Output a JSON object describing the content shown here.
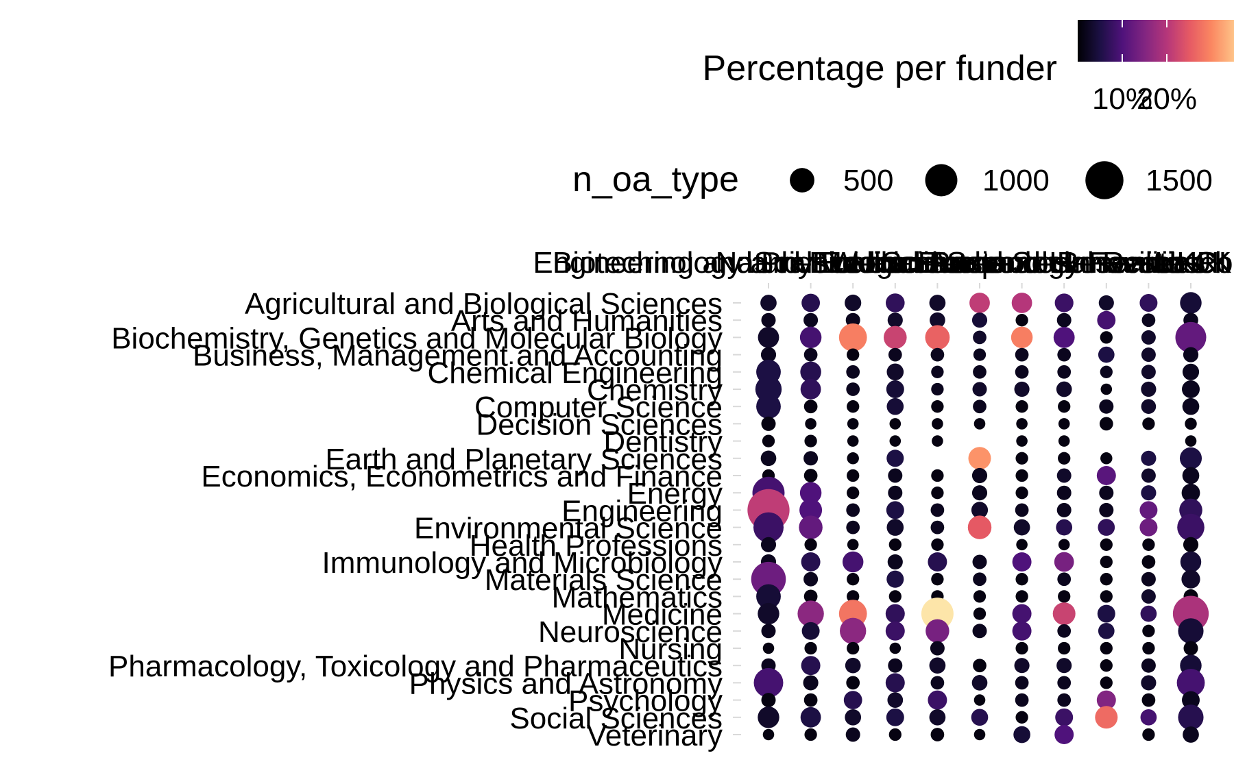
{
  "chart_data": {
    "type": "dotplot",
    "xlabel": "",
    "ylabel": "",
    "x_categories": [
      "Engineering and Physical Sciences",
      "Biotechnology and Biological Sciences",
      "Natural Environment",
      "Wellcome",
      "Medical Research",
      "Science and Technology Facilities",
      "Economic and Social Research",
      "Arts and Humanities",
      "European Research Council",
      "Innovate UK",
      "UKRI"
    ],
    "y_categories": [
      "Agricultural and Biological Sciences",
      "Arts and Humanities",
      "Biochemistry, Genetics and Molecular Biology",
      "Business, Management and Accounting",
      "Chemical Engineering",
      "Chemistry",
      "Computer Science",
      "Decision Sciences",
      "Dentistry",
      "Earth and Planetary Sciences",
      "Economics, Econometrics and Finance",
      "Energy",
      "Engineering",
      "Environmental Science",
      "Health Professions",
      "Immunology and Microbiology",
      "Materials Science",
      "Mathematics",
      "Medicine",
      "Neuroscience",
      "Nursing",
      "Pharmacology, Toxicology and Pharmaceutics",
      "Physics and Astronomy",
      "Psychology",
      "Social Sciences",
      "Veterinary"
    ],
    "points": [
      {
        "row": 0,
        "values": [
          [
            150,
            3
          ],
          [
            220,
            6
          ],
          [
            160,
            3
          ],
          [
            240,
            7
          ],
          [
            150,
            3
          ],
          [
            300,
            21
          ],
          [
            300,
            20
          ],
          [
            230,
            8
          ],
          [
            120,
            3
          ],
          [
            200,
            7
          ],
          [
            350,
            4
          ]
        ]
      },
      {
        "row": 1,
        "values": [
          [
            100,
            2
          ],
          [
            100,
            2
          ],
          [
            100,
            2
          ],
          [
            120,
            3
          ],
          [
            130,
            3
          ],
          [
            120,
            4
          ],
          [
            60,
            1
          ],
          [
            100,
            2
          ],
          [
            220,
            9
          ],
          [
            80,
            2
          ],
          [
            110,
            2
          ]
        ]
      },
      {
        "row": 2,
        "values": [
          [
            330,
            3
          ],
          [
            350,
            9
          ],
          [
            700,
            29
          ],
          [
            420,
            22
          ],
          [
            500,
            26
          ],
          [
            80,
            3
          ],
          [
            350,
            29
          ],
          [
            330,
            10
          ],
          [
            60,
            1
          ],
          [
            100,
            3
          ],
          [
            900,
            12
          ]
        ]
      },
      {
        "row": 3,
        "values": [
          [
            120,
            2
          ],
          [
            80,
            2
          ],
          [
            60,
            1
          ],
          [
            80,
            2
          ],
          [
            80,
            2
          ],
          [
            60,
            2
          ],
          [
            80,
            2
          ],
          [
            80,
            2
          ],
          [
            150,
            5
          ],
          [
            100,
            3
          ],
          [
            120,
            2
          ]
        ]
      },
      {
        "row": 4,
        "values": [
          [
            500,
            5
          ],
          [
            320,
            6
          ],
          [
            80,
            2
          ],
          [
            170,
            3
          ],
          [
            60,
            2
          ],
          [
            80,
            2
          ],
          [
            80,
            2
          ],
          [
            80,
            2
          ],
          [
            60,
            2
          ],
          [
            100,
            3
          ],
          [
            160,
            2
          ]
        ]
      },
      {
        "row": 5,
        "values": [
          [
            600,
            5
          ],
          [
            300,
            7
          ],
          [
            80,
            2
          ],
          [
            200,
            4
          ],
          [
            60,
            2
          ],
          [
            100,
            3
          ],
          [
            120,
            3
          ],
          [
            130,
            3
          ],
          [
            40,
            1
          ],
          [
            120,
            3
          ],
          [
            200,
            2
          ]
        ]
      },
      {
        "row": 6,
        "values": [
          [
            500,
            5
          ],
          [
            80,
            1
          ],
          [
            60,
            1
          ],
          [
            170,
            4
          ],
          [
            60,
            1
          ],
          [
            80,
            2
          ],
          [
            60,
            1
          ],
          [
            60,
            1
          ],
          [
            100,
            2
          ],
          [
            110,
            3
          ],
          [
            170,
            2
          ]
        ]
      },
      {
        "row": 7,
        "values": [
          [
            100,
            1
          ],
          [
            40,
            1
          ],
          [
            40,
            1
          ],
          [
            40,
            1
          ],
          [
            40,
            1
          ],
          [
            40,
            1
          ],
          [
            40,
            1
          ],
          [
            40,
            1
          ],
          [
            80,
            1
          ],
          [
            60,
            1
          ],
          [
            50,
            1
          ]
        ]
      },
      {
        "row": 8,
        "values": [
          [
            60,
            1
          ],
          [
            60,
            1
          ],
          [
            40,
            1
          ],
          [
            40,
            1
          ],
          [
            40,
            1
          ],
          [
            0,
            0
          ],
          [
            40,
            1
          ],
          [
            40,
            1
          ],
          [
            0,
            0
          ],
          [
            0,
            0
          ],
          [
            40,
            1
          ]
        ]
      },
      {
        "row": 9,
        "values": [
          [
            130,
            2
          ],
          [
            100,
            2
          ],
          [
            50,
            1
          ],
          [
            180,
            5
          ],
          [
            0,
            0
          ],
          [
            400,
            31
          ],
          [
            60,
            1
          ],
          [
            60,
            1
          ],
          [
            50,
            1
          ],
          [
            120,
            5
          ],
          [
            370,
            5
          ]
        ]
      },
      {
        "row": 10,
        "values": [
          [
            60,
            1
          ],
          [
            80,
            1
          ],
          [
            60,
            1
          ],
          [
            100,
            2
          ],
          [
            60,
            1
          ],
          [
            120,
            2
          ],
          [
            60,
            1
          ],
          [
            100,
            3
          ],
          [
            250,
            11
          ],
          [
            100,
            3
          ],
          [
            170,
            2
          ]
        ]
      },
      {
        "row": 11,
        "values": [
          [
            1000,
            9
          ],
          [
            350,
            10
          ],
          [
            60,
            1
          ],
          [
            100,
            2
          ],
          [
            60,
            1
          ],
          [
            120,
            2
          ],
          [
            60,
            1
          ],
          [
            100,
            2
          ],
          [
            100,
            2
          ],
          [
            120,
            5
          ],
          [
            220,
            2
          ]
        ]
      },
      {
        "row": 12,
        "values": [
          [
            1900,
            21
          ],
          [
            400,
            10
          ],
          [
            80,
            2
          ],
          [
            200,
            5
          ],
          [
            80,
            2
          ],
          [
            160,
            3
          ],
          [
            80,
            2
          ],
          [
            100,
            2
          ],
          [
            100,
            2
          ],
          [
            200,
            12
          ],
          [
            420,
            7
          ]
        ]
      },
      {
        "row": 13,
        "values": [
          [
            850,
            8
          ],
          [
            450,
            12
          ],
          [
            80,
            2
          ],
          [
            170,
            3
          ],
          [
            80,
            2
          ],
          [
            450,
            25
          ],
          [
            150,
            3
          ],
          [
            150,
            6
          ],
          [
            170,
            7
          ],
          [
            200,
            13
          ],
          [
            650,
            8
          ]
        ]
      },
      {
        "row": 14,
        "values": [
          [
            120,
            2
          ],
          [
            60,
            1
          ],
          [
            40,
            1
          ],
          [
            60,
            1
          ],
          [
            60,
            1
          ],
          [
            0,
            0
          ],
          [
            40,
            1
          ],
          [
            40,
            1
          ],
          [
            60,
            1
          ],
          [
            60,
            1
          ],
          [
            120,
            1
          ]
        ]
      },
      {
        "row": 15,
        "values": [
          [
            120,
            2
          ],
          [
            250,
            6
          ],
          [
            320,
            9
          ],
          [
            120,
            2
          ],
          [
            250,
            6
          ],
          [
            100,
            2
          ],
          [
            250,
            10
          ],
          [
            270,
            14
          ],
          [
            60,
            1
          ],
          [
            80,
            1
          ],
          [
            320,
            4
          ]
        ]
      },
      {
        "row": 16,
        "values": [
          [
            1200,
            13
          ],
          [
            100,
            2
          ],
          [
            60,
            1
          ],
          [
            180,
            5
          ],
          [
            60,
            1
          ],
          [
            80,
            2
          ],
          [
            60,
            1
          ],
          [
            80,
            2
          ],
          [
            60,
            1
          ],
          [
            100,
            2
          ],
          [
            230,
            3
          ]
        ]
      },
      {
        "row": 17,
        "values": [
          [
            500,
            4
          ],
          [
            80,
            1
          ],
          [
            60,
            1
          ],
          [
            60,
            1
          ],
          [
            60,
            1
          ],
          [
            60,
            1
          ],
          [
            60,
            1
          ],
          [
            60,
            1
          ],
          [
            60,
            1
          ],
          [
            100,
            3
          ],
          [
            100,
            1
          ]
        ]
      },
      {
        "row": 18,
        "values": [
          [
            350,
            3
          ],
          [
            600,
            16
          ],
          [
            700,
            28
          ],
          [
            250,
            7
          ],
          [
            1000,
            38
          ],
          [
            60,
            1
          ],
          [
            250,
            9
          ],
          [
            400,
            22
          ],
          [
            200,
            5
          ],
          [
            150,
            7
          ],
          [
            1300,
            19
          ]
        ]
      },
      {
        "row": 19,
        "values": [
          [
            100,
            2
          ],
          [
            200,
            4
          ],
          [
            600,
            16
          ],
          [
            250,
            8
          ],
          [
            450,
            14
          ],
          [
            100,
            2
          ],
          [
            250,
            9
          ],
          [
            80,
            2
          ],
          [
            150,
            5
          ],
          [
            60,
            1
          ],
          [
            550,
            4
          ]
        ]
      },
      {
        "row": 20,
        "values": [
          [
            40,
            1
          ],
          [
            60,
            1
          ],
          [
            60,
            1
          ],
          [
            40,
            1
          ],
          [
            100,
            2
          ],
          [
            0,
            0
          ],
          [
            60,
            1
          ],
          [
            60,
            1
          ],
          [
            60,
            1
          ],
          [
            60,
            1
          ],
          [
            100,
            1
          ]
        ]
      },
      {
        "row": 21,
        "values": [
          [
            100,
            2
          ],
          [
            250,
            6
          ],
          [
            130,
            3
          ],
          [
            100,
            2
          ],
          [
            150,
            3
          ],
          [
            80,
            1
          ],
          [
            120,
            3
          ],
          [
            120,
            3
          ],
          [
            60,
            1
          ],
          [
            100,
            2
          ],
          [
            350,
            4
          ]
        ]
      },
      {
        "row": 22,
        "values": [
          [
            800,
            9
          ],
          [
            120,
            2
          ],
          [
            80,
            1
          ],
          [
            250,
            6
          ],
          [
            80,
            2
          ],
          [
            130,
            3
          ],
          [
            80,
            2
          ],
          [
            80,
            2
          ],
          [
            60,
            1
          ],
          [
            120,
            3
          ],
          [
            700,
            9
          ]
        ]
      },
      {
        "row": 23,
        "values": [
          [
            100,
            1
          ],
          [
            80,
            1
          ],
          [
            220,
            6
          ],
          [
            130,
            3
          ],
          [
            250,
            8
          ],
          [
            40,
            1
          ],
          [
            80,
            2
          ],
          [
            80,
            2
          ],
          [
            250,
            15
          ],
          [
            80,
            1
          ],
          [
            200,
            2
          ]
        ]
      },
      {
        "row": 24,
        "values": [
          [
            350,
            3
          ],
          [
            300,
            5
          ],
          [
            150,
            3
          ],
          [
            200,
            5
          ],
          [
            150,
            3
          ],
          [
            170,
            6
          ],
          [
            60,
            1
          ],
          [
            200,
            8
          ],
          [
            400,
            27
          ],
          [
            150,
            9
          ],
          [
            550,
            6
          ]
        ]
      },
      {
        "row": 25,
        "values": [
          [
            40,
            1
          ],
          [
            60,
            1
          ],
          [
            100,
            2
          ],
          [
            60,
            1
          ],
          [
            80,
            1
          ],
          [
            40,
            1
          ],
          [
            170,
            4
          ],
          [
            250,
            10
          ],
          [
            0,
            0
          ],
          [
            60,
            1
          ],
          [
            150,
            2
          ]
        ]
      }
    ],
    "legend_color": {
      "title": "Percentage per funder",
      "tick_labels": [
        "10%",
        "20%"
      ],
      "ticks": [
        10,
        20
      ],
      "range": [
        0,
        40
      ],
      "palette": [
        "#000004",
        "#1c1044",
        "#4f127b",
        "#812581",
        "#b5367a",
        "#e55964",
        "#fb8761",
        "#fec287",
        "#fcfdbf"
      ]
    },
    "legend_size": {
      "title": "n_oa_type",
      "tick_labels": [
        "500",
        "1000",
        "1500"
      ],
      "values": [
        500,
        1000,
        1500
      ]
    },
    "grid": false,
    "legend_position": "top"
  }
}
